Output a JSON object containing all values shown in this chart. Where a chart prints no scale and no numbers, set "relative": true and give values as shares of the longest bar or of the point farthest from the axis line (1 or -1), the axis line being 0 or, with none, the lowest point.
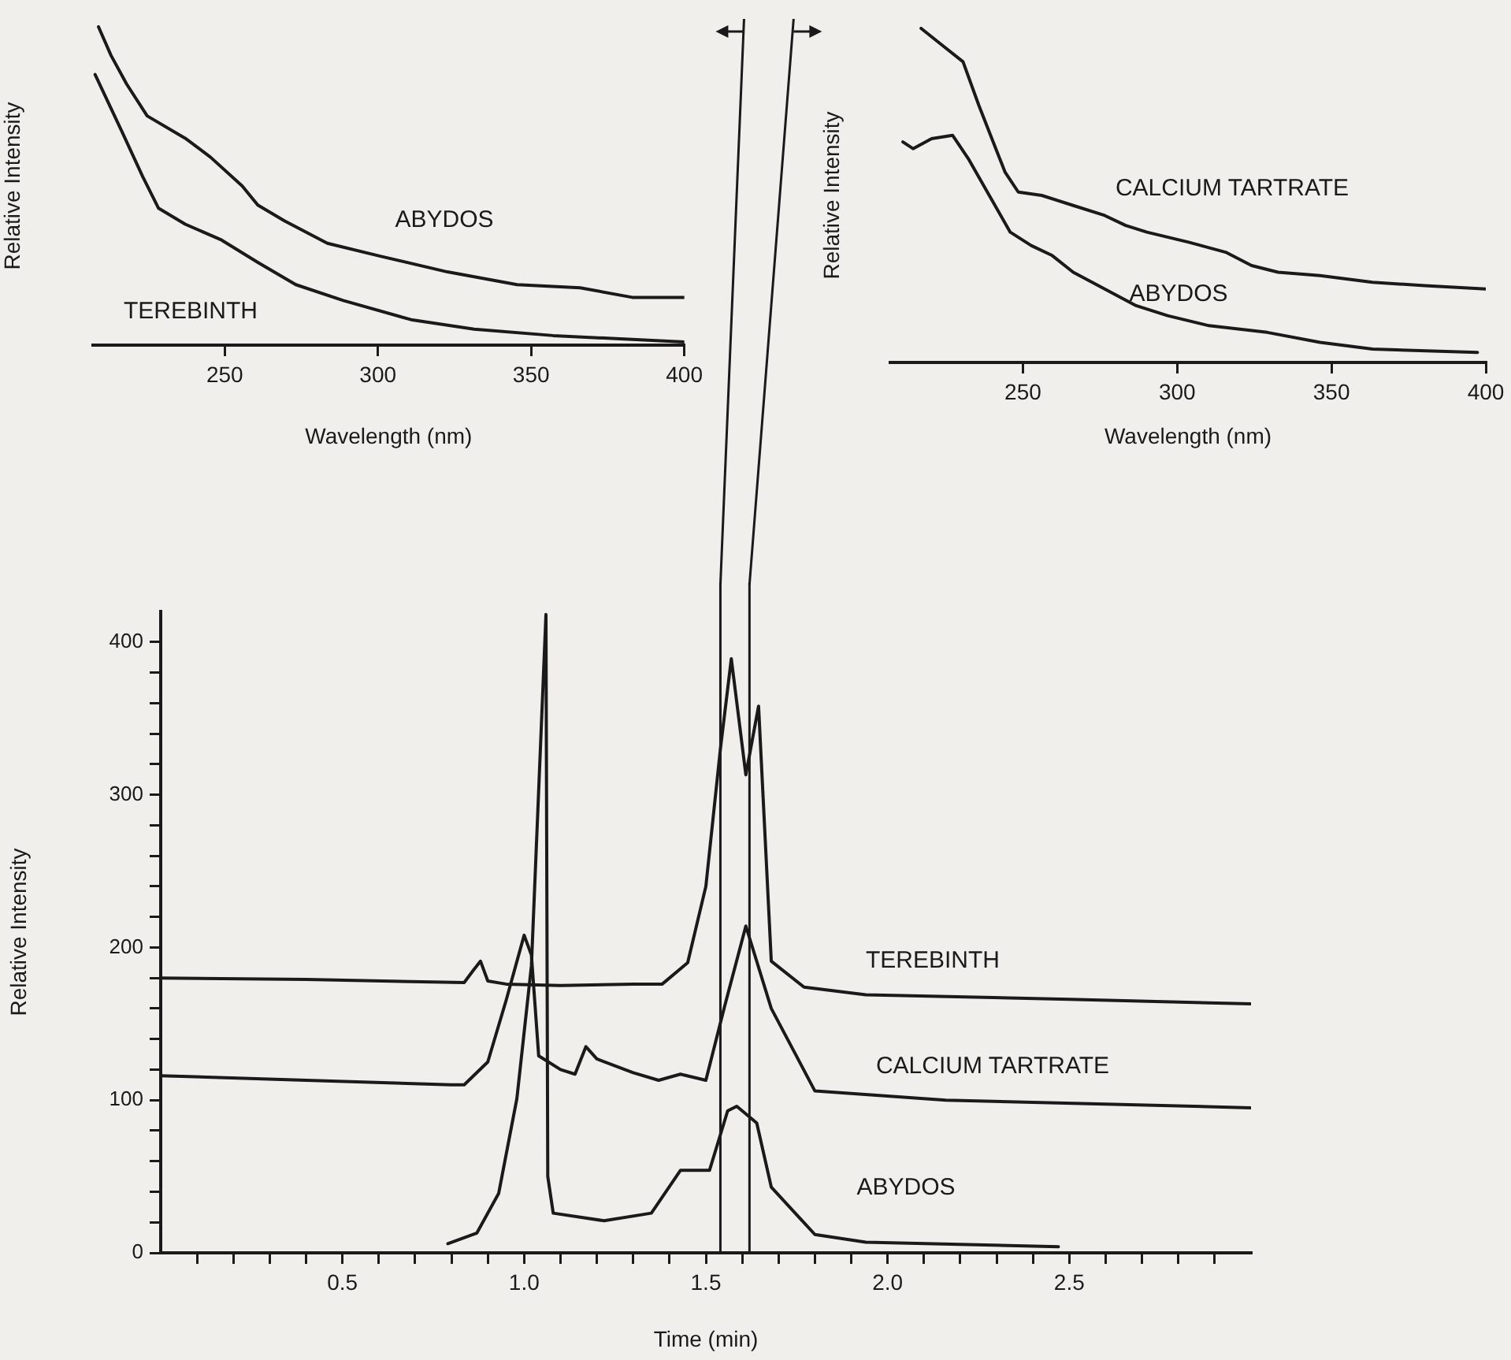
{
  "chart_data": [
    {
      "type": "line",
      "relative": true,
      "xlabel": "Wavelength (nm)",
      "ylabel": "Relative Intensity",
      "xlim": [
        207,
        400
      ],
      "xticks": [
        250,
        300,
        350,
        400
      ],
      "grid": false,
      "legend": false,
      "marker": "none",
      "line_style": "solid",
      "series": [
        {
          "name": "ABYDOS",
          "color": "#1a1a1a",
          "x": [
            208.8,
            212.9,
            218.0,
            224.7,
            237.1,
            245.4,
            255.7,
            260.8,
            269.6,
            283.5,
            300.5,
            322.7,
            345.4,
            366.0,
            383.0,
            400
          ],
          "values": [
            1.0,
            0.91,
            0.82,
            0.72,
            0.65,
            0.59,
            0.5,
            0.44,
            0.39,
            0.32,
            0.28,
            0.23,
            0.19,
            0.18,
            0.15,
            0.15
          ]
        },
        {
          "name": "TEREBINTH",
          "color": "#1a1a1a",
          "x": [
            207.7,
            216.5,
            223.2,
            228.4,
            237.1,
            249.0,
            260.8,
            273.2,
            288.7,
            310.8,
            331.4,
            357.2,
            400
          ],
          "values": [
            0.85,
            0.67,
            0.53,
            0.43,
            0.38,
            0.33,
            0.26,
            0.19,
            0.14,
            0.08,
            0.05,
            0.03,
            0.01
          ]
        }
      ]
    },
    {
      "type": "line",
      "relative": true,
      "xlabel": "Wavelength (nm)",
      "ylabel": "Relative Intensity",
      "xlim": [
        207,
        400
      ],
      "xticks": [
        250,
        300,
        350,
        400
      ],
      "grid": false,
      "legend": false,
      "marker": "none",
      "line_style": "solid",
      "series": [
        {
          "name": "CALCIUM TARTRATE",
          "color": "#1a1a1a",
          "x": [
            217.0,
            223.8,
            230.6,
            235.7,
            240.8,
            244.2,
            248.5,
            256.1,
            266.3,
            276.5,
            283.3,
            290.2,
            303.7,
            315.7,
            324.1,
            332.7,
            346.3,
            363.3,
            380.2,
            400
          ],
          "values": [
            1.0,
            0.95,
            0.9,
            0.77,
            0.65,
            0.57,
            0.51,
            0.5,
            0.47,
            0.44,
            0.41,
            0.39,
            0.36,
            0.33,
            0.29,
            0.27,
            0.26,
            0.24,
            0.23,
            0.22
          ]
        },
        {
          "name": "ABYDOS",
          "color": "#1a1a1a",
          "x": [
            211.1,
            214.4,
            220.4,
            227.2,
            232.3,
            239.1,
            245.9,
            252.7,
            259.5,
            266.3,
            276.5,
            286.7,
            296.9,
            310.3,
            329.2,
            346.3,
            363.3,
            397.3
          ],
          "values": [
            0.66,
            0.64,
            0.67,
            0.68,
            0.61,
            0.5,
            0.39,
            0.35,
            0.32,
            0.27,
            0.22,
            0.17,
            0.14,
            0.11,
            0.09,
            0.06,
            0.04,
            0.03
          ]
        }
      ]
    },
    {
      "type": "line",
      "xlabel": "Time (min)",
      "ylabel": "Relative Intensity",
      "xlim": [
        0,
        3.0
      ],
      "ylim": [
        0,
        420
      ],
      "grid": false,
      "legend": false,
      "marker": "none",
      "line_style": "solid",
      "xticks": [
        {
          "value": 0.1,
          "label": null
        },
        {
          "value": 0.2,
          "label": null
        },
        {
          "value": 0.3,
          "label": null
        },
        {
          "value": 0.4,
          "label": null
        },
        0.5,
        {
          "value": 0.6,
          "label": null
        },
        {
          "value": 0.7,
          "label": null
        },
        {
          "value": 0.8,
          "label": null
        },
        {
          "value": 0.9,
          "label": null
        },
        {
          "value": 1.0,
          "label": "1.0"
        },
        {
          "value": 1.1,
          "label": null
        },
        {
          "value": 1.2,
          "label": null
        },
        {
          "value": 1.3,
          "label": null
        },
        {
          "value": 1.4,
          "label": null
        },
        1.5,
        {
          "value": 1.6,
          "label": null
        },
        {
          "value": 1.7,
          "label": null
        },
        {
          "value": 1.8,
          "label": null
        },
        {
          "value": 1.9,
          "label": null
        },
        {
          "value": 2.0,
          "label": "2.0"
        },
        {
          "value": 2.1,
          "label": null
        },
        {
          "value": 2.2,
          "label": null
        },
        {
          "value": 2.3,
          "label": null
        },
        {
          "value": 2.4,
          "label": null
        },
        2.5,
        {
          "value": 2.6,
          "label": null
        },
        {
          "value": 2.7,
          "label": null
        },
        {
          "value": 2.8,
          "label": null
        },
        {
          "value": 2.9,
          "label": null
        }
      ],
      "yticks": [
        0,
        {
          "value": 20,
          "label": null
        },
        {
          "value": 40,
          "label": null
        },
        {
          "value": 60,
          "label": null
        },
        {
          "value": 80,
          "label": null
        },
        100,
        {
          "value": 120,
          "label": null
        },
        {
          "value": 140,
          "label": null
        },
        {
          "value": 160,
          "label": null
        },
        {
          "value": 180,
          "label": null
        },
        200,
        {
          "value": 220,
          "label": null
        },
        {
          "value": 240,
          "label": null
        },
        {
          "value": 260,
          "label": null
        },
        {
          "value": 280,
          "label": null
        },
        300,
        {
          "value": 320,
          "label": null
        },
        {
          "value": 340,
          "label": null
        },
        {
          "value": 360,
          "label": null
        },
        {
          "value": 380,
          "label": null
        },
        400
      ],
      "ref_lines": [
        {
          "axis": "x",
          "value": 1.54,
          "color": "#1a1a1a"
        },
        {
          "axis": "x",
          "value": 1.62,
          "color": "#1a1a1a"
        }
      ],
      "series": [
        {
          "name": "TEREBINTH",
          "color": "#1a1a1a",
          "x": [
            0,
            0.4,
            0.835,
            0.86,
            0.88,
            0.9,
            0.95,
            1.1,
            1.3,
            1.38,
            1.45,
            1.5,
            1.54,
            1.57,
            1.61,
            1.645,
            1.68,
            1.77,
            1.94,
            2.5,
            3.0
          ],
          "values": [
            180,
            179,
            177,
            185,
            191,
            178,
            176,
            175,
            176,
            176,
            190,
            240,
            330,
            389,
            313,
            358,
            191,
            174,
            169,
            166,
            163
          ]
        },
        {
          "name": "CALCIUM TARTRATE",
          "color": "#1a1a1a",
          "x": [
            0,
            0.4,
            0.8,
            0.835,
            0.9,
            0.95,
            1.0,
            1.02,
            1.04,
            1.1,
            1.14,
            1.17,
            1.2,
            1.3,
            1.37,
            1.43,
            1.5,
            1.55,
            1.61,
            1.68,
            1.8,
            2.16,
            3.0
          ],
          "values": [
            116,
            113,
            110,
            110,
            125,
            165,
            208,
            195,
            129,
            120,
            117,
            135,
            127,
            118,
            113,
            117,
            113,
            160,
            214,
            160,
            106,
            100,
            95
          ]
        },
        {
          "name": "ABYDOS",
          "color": "#1a1a1a",
          "x": [
            0.79,
            0.87,
            0.93,
            0.98,
            1.02,
            1.06,
            1.065,
            1.08,
            1.22,
            1.35,
            1.43,
            1.51,
            1.56,
            1.585,
            1.64,
            1.68,
            1.8,
            1.94,
            2.47
          ],
          "values": [
            6,
            13,
            39,
            101,
            188,
            418,
            50,
            26,
            21,
            26,
            54,
            54,
            93,
            96,
            85,
            43,
            12,
            7,
            4
          ]
        }
      ]
    }
  ]
}
